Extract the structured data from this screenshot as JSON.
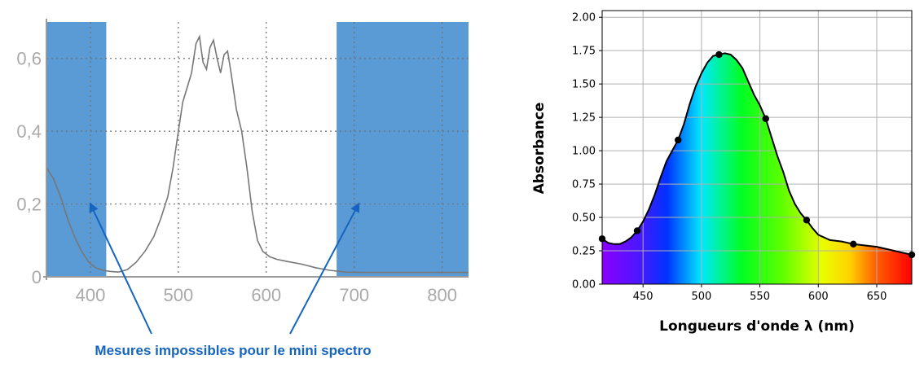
{
  "chart_data": [
    {
      "type": "line",
      "x_ticks": [
        "400",
        "500",
        "600",
        "700",
        "800"
      ],
      "y_ticks": [
        "0",
        "0,2",
        "0,4",
        "0,6"
      ],
      "xlim": [
        350,
        830
      ],
      "ylim": [
        0,
        0.7
      ],
      "grid": true,
      "excluded_regions": [
        [
          350,
          418
        ],
        [
          680,
          830
        ]
      ],
      "excluded_region_color": "#5b9bd5",
      "line_color": "#777777",
      "series": [
        {
          "x": [
            350,
            358,
            366,
            374,
            382,
            390,
            398,
            406,
            414,
            422,
            432,
            442,
            452,
            462,
            472,
            480,
            488,
            494,
            500,
            505,
            510,
            515,
            520,
            524,
            528,
            532,
            536,
            540,
            544,
            548,
            552,
            556,
            560,
            566,
            572,
            578,
            584,
            590,
            596,
            604,
            612,
            624,
            640,
            656,
            672,
            690,
            710,
            740,
            770,
            800,
            830
          ],
          "y": [
            0.3,
            0.27,
            0.22,
            0.16,
            0.11,
            0.07,
            0.04,
            0.025,
            0.018,
            0.015,
            0.013,
            0.02,
            0.04,
            0.07,
            0.11,
            0.16,
            0.22,
            0.3,
            0.4,
            0.48,
            0.52,
            0.56,
            0.64,
            0.66,
            0.59,
            0.57,
            0.63,
            0.65,
            0.6,
            0.56,
            0.61,
            0.62,
            0.56,
            0.46,
            0.4,
            0.3,
            0.18,
            0.1,
            0.07,
            0.055,
            0.048,
            0.042,
            0.035,
            0.025,
            0.018,
            0.013,
            0.012,
            0.012,
            0.012,
            0.012,
            0.012
          ]
        }
      ],
      "annotation": {
        "text": "Mesures impossibles pour le mini spectro",
        "color": "#1565c0",
        "arrow_targets_x": [
          400,
          705
        ],
        "arrow_targets_y": [
          0.2,
          0.2
        ]
      }
    },
    {
      "type": "area",
      "xlabel": "Longueurs d'onde λ (nm)",
      "ylabel": "Absorbance",
      "x_ticks": [
        "450",
        "500",
        "550",
        "600",
        "650"
      ],
      "x_tick_values": [
        450,
        500,
        550,
        600,
        650
      ],
      "y_ticks": [
        "0.00",
        "0.25",
        "0.50",
        "0.75",
        "1.00",
        "1.25",
        "1.50",
        "1.75",
        "2.00"
      ],
      "y_tick_values": [
        0,
        0.25,
        0.5,
        0.75,
        1,
        1.25,
        1.5,
        1.75,
        2
      ],
      "xlim": [
        415,
        680
      ],
      "ylim": [
        0,
        2.05
      ],
      "grid": true,
      "fill": "visible-spectrum gradient",
      "line_color": "#000000",
      "points": {
        "x": [
          415,
          445,
          480,
          515,
          555,
          590,
          630,
          680
        ],
        "y": [
          0.34,
          0.4,
          1.08,
          1.72,
          1.24,
          0.48,
          0.3,
          0.22
        ]
      },
      "curve": {
        "x": [
          415,
          420,
          425,
          430,
          435,
          440,
          445,
          450,
          455,
          460,
          465,
          470,
          475,
          480,
          485,
          490,
          495,
          500,
          505,
          510,
          515,
          520,
          525,
          530,
          535,
          540,
          545,
          550,
          555,
          560,
          565,
          570,
          575,
          580,
          585,
          590,
          595,
          600,
          610,
          620,
          630,
          640,
          650,
          660,
          670,
          680
        ],
        "y": [
          0.34,
          0.31,
          0.3,
          0.3,
          0.32,
          0.35,
          0.4,
          0.47,
          0.56,
          0.67,
          0.8,
          0.92,
          1.0,
          1.08,
          1.2,
          1.35,
          1.48,
          1.58,
          1.66,
          1.71,
          1.72,
          1.73,
          1.72,
          1.68,
          1.62,
          1.52,
          1.42,
          1.34,
          1.24,
          1.1,
          0.96,
          0.84,
          0.7,
          0.6,
          0.53,
          0.48,
          0.42,
          0.37,
          0.33,
          0.32,
          0.3,
          0.29,
          0.28,
          0.26,
          0.24,
          0.22
        ]
      }
    }
  ]
}
